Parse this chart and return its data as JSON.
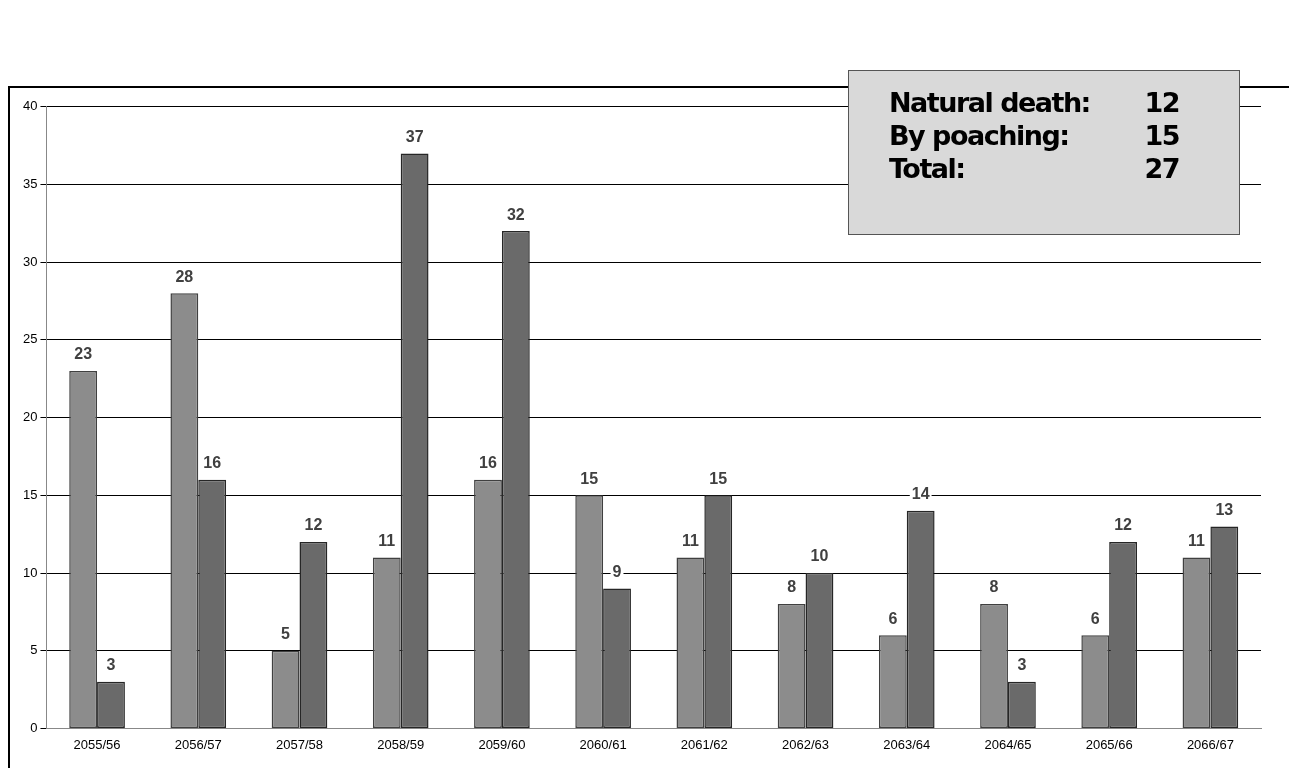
{
  "chart_data": {
    "type": "bar",
    "categories": [
      "2055/56",
      "2056/57",
      "2057/58",
      "2058/59",
      "2059/60",
      "2060/61",
      "2061/62",
      "2062/63",
      "2063/64",
      "2064/65",
      "2065/66",
      "2066/67"
    ],
    "series": [
      {
        "color": "#8c8c8c",
        "values": [
          23,
          28,
          5,
          11,
          16,
          15,
          11,
          8,
          6,
          8,
          6,
          11
        ]
      },
      {
        "color": "#6a6a6a",
        "values": [
          3,
          16,
          12,
          37,
          32,
          9,
          15,
          10,
          14,
          3,
          12,
          13
        ]
      }
    ],
    "ylim": [
      0,
      40
    ],
    "yticks": [
      0,
      5,
      10,
      15,
      20,
      25,
      30,
      35,
      40
    ],
    "grid": "y",
    "data_labels": true,
    "legend": false,
    "annotations": [
      "Natural death:",
      "12",
      "By poaching:",
      "15",
      "Total:",
      "27"
    ]
  }
}
